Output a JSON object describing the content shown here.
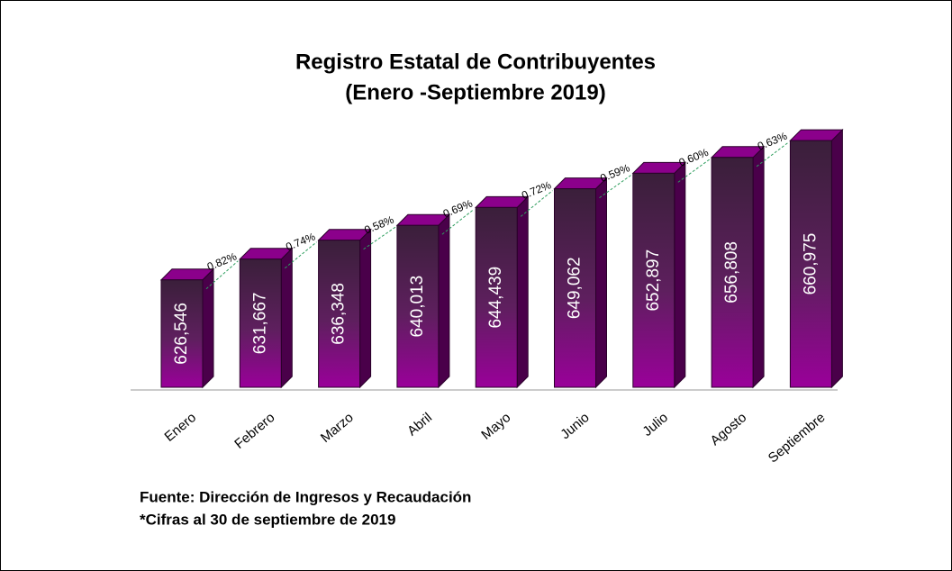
{
  "chart_data": {
    "type": "bar3d",
    "title": "Registro Estatal de Contribuyentes",
    "subtitle": "(Enero -Septiembre 2019)",
    "categories": [
      "Enero",
      "Febrero",
      "Marzo",
      "Abril",
      "Mayo",
      "Junio",
      "Julio",
      "Agosto",
      "Septiembre"
    ],
    "values": [
      626546,
      631667,
      636348,
      640013,
      644439,
      649062,
      652897,
      656808,
      660975
    ],
    "value_labels": [
      "626,546",
      "631,667",
      "636,348",
      "640,013",
      "644,439",
      "649,062",
      "652,897",
      "656,808",
      "660,975"
    ],
    "growth": {
      "values": [
        0.82,
        0.74,
        0.58,
        0.69,
        0.72,
        0.59,
        0.6,
        0.63
      ],
      "value_labels": [
        "0.82%",
        "0.74%",
        "0.58%",
        "0.69%",
        "0.72%",
        "0.59%",
        "0.60%",
        "0.63%"
      ],
      "color": "#2e9e5e"
    },
    "color": "#8b008b",
    "ylim": [
      600000,
      665000
    ],
    "annotations": [
      "Fuente: Dirección de Ingresos y Recaudación",
      "*Cifras  al 30 de septiembre de 2019"
    ]
  }
}
